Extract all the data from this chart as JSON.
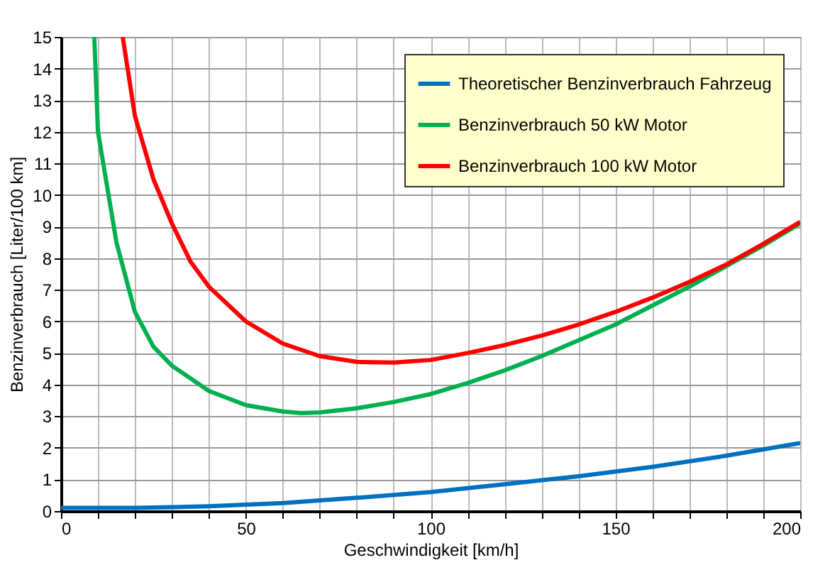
{
  "chart_data": {
    "type": "line",
    "xlabel": "Geschwindigkeit [km/h]",
    "ylabel": "Benzinverbrauch [Liter/100 km]",
    "xlim": [
      0,
      200
    ],
    "ylim": [
      0,
      15
    ],
    "xticks": [
      0,
      50,
      100,
      150,
      200
    ],
    "yticks": [
      0,
      1,
      2,
      3,
      4,
      5,
      6,
      7,
      8,
      9,
      10,
      11,
      12,
      13,
      14,
      15
    ],
    "grid": true,
    "legend": "top right",
    "line_style": "solid",
    "marker": "none",
    "series": [
      {
        "name": "Theoretischer Benzinverbrauch Fahrzeug",
        "color": "#0070c0",
        "x": [
          0,
          20,
          40,
          60,
          80,
          100,
          120,
          140,
          160,
          180,
          200
        ],
        "values": [
          0.1,
          0.1,
          0.15,
          0.25,
          0.42,
          0.6,
          0.85,
          1.1,
          1.4,
          1.75,
          2.15
        ]
      },
      {
        "name": "Benzinverbrauch 50 kW Motor",
        "color": "#00b050",
        "x": [
          9,
          10,
          15,
          20,
          25,
          30,
          40,
          50,
          60,
          65,
          70,
          80,
          90,
          100,
          110,
          120,
          130,
          140,
          150,
          160,
          170,
          180,
          190,
          200
        ],
        "values": [
          15,
          12,
          8.5,
          6.3,
          5.2,
          4.6,
          3.8,
          3.35,
          3.15,
          3.1,
          3.12,
          3.25,
          3.45,
          3.7,
          4.05,
          4.45,
          4.9,
          5.4,
          5.9,
          6.5,
          7.1,
          7.75,
          8.4,
          9.1
        ]
      },
      {
        "name": "Benzinverbrauch 100 kW Motor",
        "color": "#ff0000",
        "x": [
          16.7,
          20,
          25,
          30,
          35,
          40,
          50,
          60,
          70,
          80,
          90,
          100,
          110,
          120,
          130,
          140,
          150,
          160,
          170,
          180,
          190,
          200
        ],
        "values": [
          15,
          12.5,
          10.5,
          9.1,
          7.9,
          7.1,
          6.0,
          5.3,
          4.9,
          4.72,
          4.7,
          4.78,
          5.0,
          5.25,
          5.55,
          5.9,
          6.3,
          6.75,
          7.25,
          7.8,
          8.45,
          9.15
        ]
      }
    ]
  }
}
